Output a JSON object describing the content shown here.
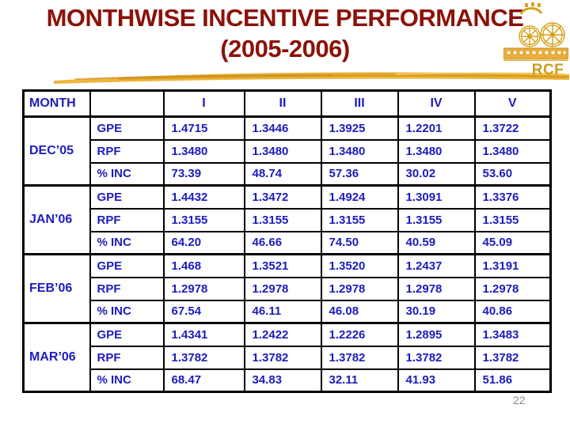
{
  "title": {
    "line1": "MONTHWISE INCENTIVE PERFORMANCE",
    "line2": "(2005-2006)"
  },
  "logo": {
    "name": "rcf-logo",
    "monogram": "RCF"
  },
  "colors": {
    "title_maroon": "#8B1209",
    "table_blue": "#1C1CBE",
    "gold": "#E9B832",
    "gold_dark": "#C9921E",
    "border_black": "#000000",
    "page_number_gray": "#8a8a8a"
  },
  "page": {
    "number": "22"
  },
  "table": {
    "header": [
      "MONTH",
      "",
      "I",
      "II",
      "III",
      "IV",
      "V"
    ],
    "groups": [
      {
        "month": "DEC’05",
        "rows": [
          {
            "metric": "GPE",
            "values": [
              "1.4715",
              "1.3446",
              "1.3925",
              "1.2201",
              "1.3722"
            ]
          },
          {
            "metric": "RPF",
            "values": [
              "1.3480",
              "1.3480",
              "1.3480",
              "1.3480",
              "1.3480"
            ]
          },
          {
            "metric": "% INC",
            "values": [
              "73.39",
              "48.74",
              "57.36",
              "30.02",
              "53.60"
            ]
          }
        ]
      },
      {
        "month": "JAN’06",
        "rows": [
          {
            "metric": "GPE",
            "values": [
              "1.4432",
              "1.3472",
              "1.4924",
              "1.3091",
              "1.3376"
            ]
          },
          {
            "metric": "RPF",
            "values": [
              "1.3155",
              "1.3155",
              "1.3155",
              "1.3155",
              "1.3155"
            ]
          },
          {
            "metric": "% INC",
            "values": [
              "64.20",
              "46.66",
              "74.50",
              "40.59",
              "45.09"
            ]
          }
        ]
      },
      {
        "month": "FEB’06",
        "rows": [
          {
            "metric": "GPE",
            "values": [
              "1.468",
              "1.3521",
              "1.3520",
              "1.2437",
              "1.3191"
            ]
          },
          {
            "metric": "RPF",
            "values": [
              "1.2978",
              "1.2978",
              "1.2978",
              "1.2978",
              "1.2978"
            ]
          },
          {
            "metric": "% INC",
            "values": [
              "67.54",
              "46.11",
              "46.08",
              "30.19",
              "40.86"
            ]
          }
        ]
      },
      {
        "month": "MAR’06",
        "rows": [
          {
            "metric": "GPE",
            "values": [
              "1.4341",
              "1.2422",
              "1.2226",
              "1.2895",
              "1.3483"
            ]
          },
          {
            "metric": "RPF",
            "values": [
              "1.3782",
              "1.3782",
              "1.3782",
              "1.3782",
              "1.3782"
            ]
          },
          {
            "metric": "% INC",
            "values": [
              "68.47",
              "34.83",
              "32.11",
              "41.93",
              "51.86"
            ]
          }
        ]
      }
    ]
  }
}
